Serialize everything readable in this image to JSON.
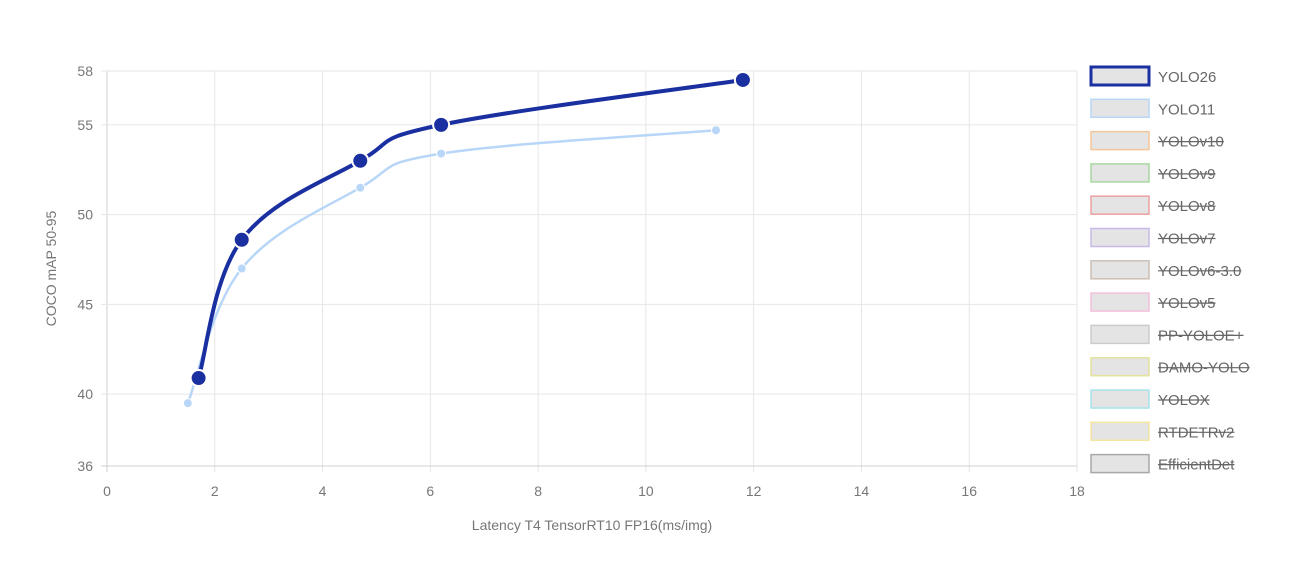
{
  "chart_data": {
    "type": "line",
    "xlabel": "Latency T4 TensorRT10 FP16(ms/img)",
    "ylabel": "COCO mAP 50-95",
    "xlim": [
      0,
      18
    ],
    "ylim": [
      36,
      58
    ],
    "x_ticks": [
      "0",
      "2",
      "4",
      "6",
      "8",
      "10",
      "12",
      "14",
      "16",
      "18"
    ],
    "y_ticks": [
      "36",
      "40",
      "45",
      "50",
      "55",
      "58"
    ],
    "y_tick_values": [
      36,
      40,
      45,
      50,
      55,
      58
    ],
    "grid": true,
    "legend_position": "right",
    "series": [
      {
        "name": "YOLO26",
        "color": "#1a2fa0",
        "visible": true,
        "x": [
          1.7,
          2.5,
          4.7,
          6.2,
          11.8
        ],
        "y": [
          40.9,
          48.6,
          53.0,
          55.0,
          57.5
        ]
      },
      {
        "name": "YOLO11",
        "color": "#b8d6f7",
        "visible": true,
        "x": [
          1.5,
          2.5,
          4.7,
          6.2,
          11.3
        ],
        "y": [
          39.5,
          47.0,
          51.5,
          53.4,
          54.7
        ]
      },
      {
        "name": "YOLOv10",
        "color": "#f5c69a",
        "visible": false
      },
      {
        "name": "YOLOv9",
        "color": "#a8d8a0",
        "visible": false
      },
      {
        "name": "YOLOv8",
        "color": "#eea0a0",
        "visible": false
      },
      {
        "name": "YOLOv7",
        "color": "#c9b8ea",
        "visible": false
      },
      {
        "name": "YOLOv6-3.0",
        "color": "#cdbfb4",
        "visible": false
      },
      {
        "name": "YOLOv5",
        "color": "#f2c0dc",
        "visible": false
      },
      {
        "name": "PP-YOLOE+",
        "color": "#cccccc",
        "visible": false
      },
      {
        "name": "DAMO-YOLO",
        "color": "#e6e2a0",
        "visible": false
      },
      {
        "name": "YOLOX",
        "color": "#a6e4ea",
        "visible": false
      },
      {
        "name": "RTDETRv2",
        "color": "#f5e6a0",
        "visible": false
      },
      {
        "name": "EfficientDet",
        "color": "#a8a8a8",
        "visible": false
      }
    ]
  }
}
